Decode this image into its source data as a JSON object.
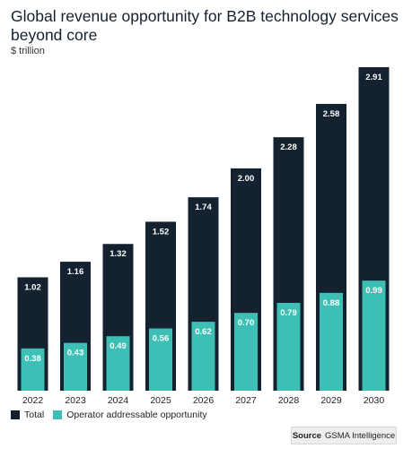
{
  "title": "Global revenue opportunity for B2B technology services beyond core",
  "unit": "$ trillion",
  "colors": {
    "total": "#14212f",
    "addressable": "#3dbfb5",
    "label_text": "#ffffff"
  },
  "chart_data": {
    "type": "bar",
    "categories": [
      "2022",
      "2023",
      "2024",
      "2025",
      "2026",
      "2027",
      "2028",
      "2029",
      "2030"
    ],
    "series": [
      {
        "name": "Total",
        "values": [
          1.02,
          1.16,
          1.32,
          1.52,
          1.74,
          2.0,
          2.28,
          2.58,
          2.91
        ]
      },
      {
        "name": "Operator addressable opportunity",
        "values": [
          0.38,
          0.43,
          0.49,
          0.56,
          0.62,
          0.7,
          0.79,
          0.88,
          0.99
        ]
      }
    ],
    "ylim": [
      0,
      2.91
    ],
    "grid": false,
    "legend_position": "bottom-left"
  },
  "source": {
    "label": "Source",
    "text": "GSMA Intelligence"
  }
}
